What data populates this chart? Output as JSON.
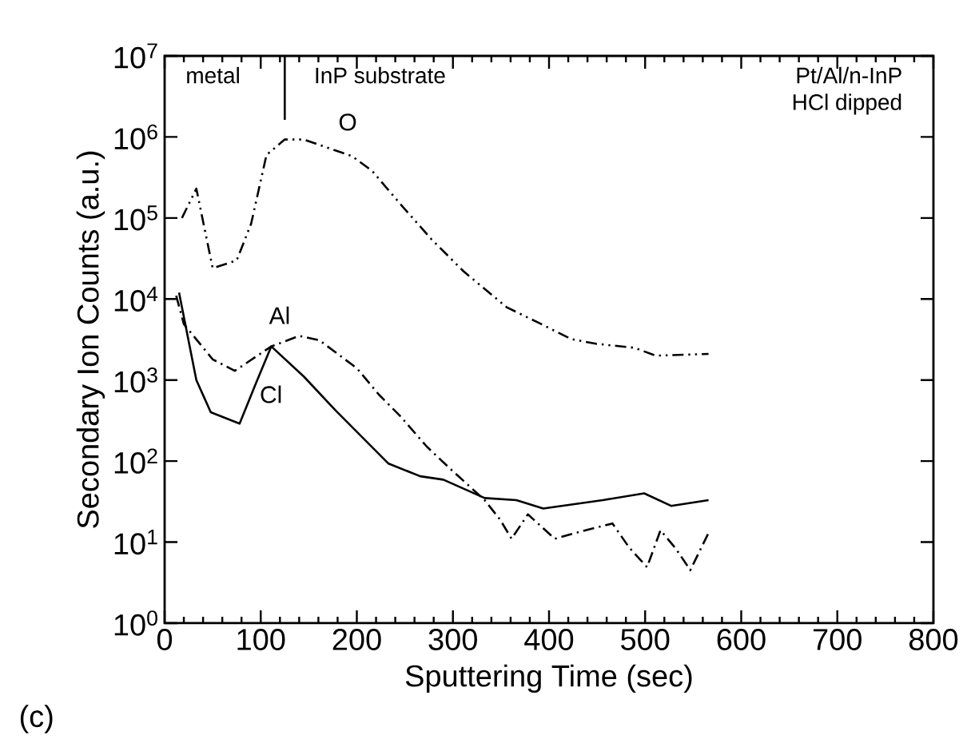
{
  "chart_data": {
    "type": "line",
    "log": "y",
    "xlabel": "Sputtering Time (sec)",
    "ylabel": "Secondary Ion Counts (a.u.)",
    "xlim": [
      0,
      800
    ],
    "xticks": [
      0,
      100,
      200,
      300,
      400,
      500,
      600,
      700,
      800
    ],
    "ylim": [
      1,
      10000000
    ],
    "yticks": [
      {
        "value": 1,
        "label": "10$^{0}$"
      },
      {
        "value": 10,
        "label": "10$^{1}$"
      },
      {
        "value": 100,
        "label": "10$^{2}$"
      },
      {
        "value": 1000,
        "label": "10$^{3}$"
      },
      {
        "value": 10000,
        "label": "10$^{4}$"
      },
      {
        "value": 100000,
        "label": "10$^{5}$"
      },
      {
        "value": 1000000,
        "label": "10$^{6}$"
      },
      {
        "value": 10000000,
        "label": "10$^{7}$"
      }
    ],
    "ref_lines": [
      {
        "axis": "x",
        "value": 125,
        "color": "#000000"
      }
    ],
    "annotations": [
      "metal",
      "InP substrate",
      "Pt/Al/n-InP",
      "HCl dipped",
      "(c)"
    ],
    "series": [
      {
        "name": "O",
        "color": "#000000",
        "line_style": "dotted",
        "x": [
          18,
          33,
          50,
          75,
          90,
          106,
          125,
          145,
          166,
          195,
          216,
          245,
          278,
          311,
          356,
          389,
          423,
          449,
          489,
          511,
          566
        ],
        "values": [
          100000,
          230000,
          24000,
          30000,
          85000,
          600000,
          930000,
          930000,
          760000,
          580000,
          380000,
          150000,
          54000,
          22000,
          7900,
          5100,
          3200,
          2800,
          2500,
          2000,
          2100
        ]
      },
      {
        "name": "Al",
        "color": "#000000",
        "line_style": "dashed",
        "x": [
          12,
          20,
          50,
          73,
          111,
          140,
          161,
          200,
          223,
          245,
          273,
          295,
          333,
          349,
          361,
          378,
          406,
          428,
          466,
          483,
          502,
          516,
          532,
          547,
          566
        ],
        "values": [
          11000,
          4900,
          1800,
          1300,
          2600,
          3500,
          3100,
          1400,
          660,
          360,
          150,
          85,
          33,
          19,
          11,
          22,
          11,
          13,
          17,
          8.7,
          4.9,
          14,
          8.3,
          4.5,
          13
        ]
      },
      {
        "name": "Cl",
        "color": "#000000",
        "line_style": "solid",
        "x": [
          15,
          33,
          48,
          78,
          95,
          111,
          145,
          178,
          233,
          266,
          290,
          333,
          366,
          394,
          456,
          499,
          527,
          566
        ],
        "values": [
          12000,
          1000,
          400,
          290,
          910,
          2600,
          1100,
          420,
          93,
          65,
          59,
          35,
          33,
          26,
          33,
          40,
          28,
          33
        ]
      }
    ]
  }
}
